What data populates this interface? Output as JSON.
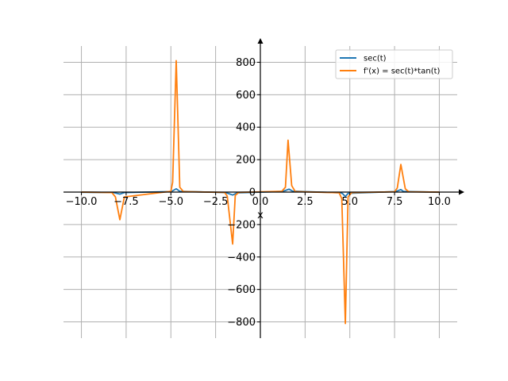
{
  "chart_data": {
    "type": "line",
    "title": "",
    "xlabel": "x",
    "ylabel": "",
    "xlim": [
      -11.0,
      11.0
    ],
    "ylim": [
      -900,
      900
    ],
    "grid": true,
    "legend_position": "top-right",
    "x_ticks": [
      -10.0,
      -7.5,
      -5.0,
      -2.5,
      0.0,
      2.5,
      5.0,
      7.5,
      10.0
    ],
    "x_tick_labels": [
      "−10.0",
      "−7.5",
      "−5.0",
      "−2.5",
      "0.0",
      "2.5",
      "5.0",
      "7.5",
      "10.0"
    ],
    "y_ticks": [
      -800,
      -600,
      -400,
      -200,
      0,
      200,
      400,
      600,
      800
    ],
    "y_tick_labels": [
      "−800",
      "−600",
      "−400",
      "−200",
      "0",
      "200",
      "400",
      "600",
      "800"
    ],
    "series": [
      {
        "name": "sec(t)",
        "color": "#1f77b4",
        "x": [
          -10.0,
          -8.2,
          -7.85,
          -7.6,
          -5.0,
          -4.9,
          -4.7,
          -4.5,
          -2.0,
          -1.8,
          -1.55,
          -1.3,
          1.2,
          1.4,
          1.6,
          1.8,
          4.5,
          4.6,
          4.75,
          4.9,
          7.5,
          7.7,
          7.85,
          8.0,
          10.0
        ],
        "y": [
          -1.2,
          -3,
          -12,
          -3,
          3,
          8,
          20,
          5,
          -3,
          -8,
          -18,
          -5,
          4,
          10,
          18,
          6,
          -5,
          -10,
          -28,
          -8,
          3,
          9,
          15,
          4,
          -1.2
        ]
      },
      {
        "name": "f'(x) = sec(t)*tan(t)",
        "color": "#ff7f0e",
        "x": [
          -10.0,
          -8.3,
          -8.1,
          -7.85,
          -7.6,
          -5.0,
          -4.9,
          -4.7,
          -4.5,
          -4.3,
          -2.0,
          -1.85,
          -1.55,
          -1.4,
          -1.2,
          1.2,
          1.4,
          1.55,
          1.75,
          1.95,
          4.4,
          4.55,
          4.75,
          4.9,
          5.1,
          7.5,
          7.65,
          7.85,
          8.1,
          8.3,
          10.0
        ],
        "y": [
          0,
          -3,
          -30,
          -170,
          -30,
          5,
          60,
          810,
          30,
          3,
          -2,
          -25,
          -320,
          -20,
          -2,
          5,
          30,
          320,
          40,
          3,
          -4,
          -40,
          -810,
          -30,
          -3,
          2,
          25,
          170,
          20,
          2,
          0
        ]
      }
    ]
  }
}
